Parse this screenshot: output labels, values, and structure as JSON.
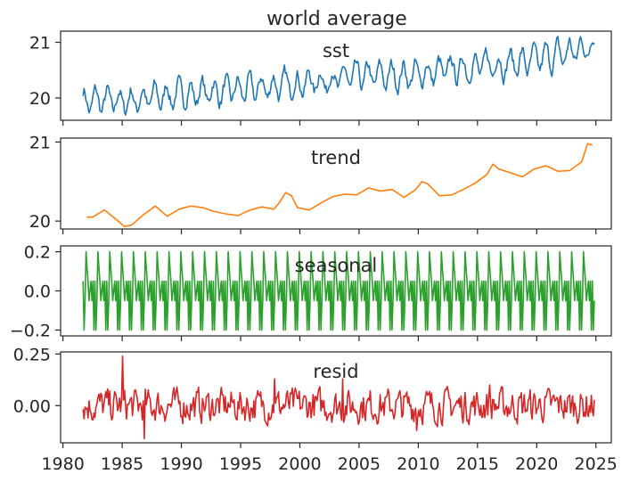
{
  "title": "world average",
  "colors": {
    "sst": "#1f77b4",
    "trend": "#ff7f0e",
    "seasonal": "#2ca02c",
    "resid": "#d62728",
    "axes": "#262626"
  },
  "chart_data": [
    {
      "type": "line",
      "panel": "sst",
      "label": "sst",
      "color": "#1f77b4",
      "ylim": [
        19.6,
        21.2
      ],
      "yticks": [
        20,
        21
      ],
      "ytick_labels": [
        "20",
        "21"
      ],
      "x_range": [
        1981.7,
        2024.9
      ],
      "x_anchor": [
        1981.7,
        1985,
        1990,
        1995,
        2000,
        2005,
        2010,
        2015,
        2020,
        2024.9
      ],
      "y_anchor": [
        19.95,
        19.94,
        20.08,
        20.14,
        20.27,
        20.38,
        20.42,
        20.58,
        20.67,
        20.94
      ],
      "seasonal_amplitude": 0.2,
      "noise_amplitude": 0.1
    },
    {
      "type": "line",
      "panel": "trend",
      "label": "trend",
      "color": "#ff7f0e",
      "ylim": [
        19.9,
        21.05
      ],
      "yticks": [
        20,
        21
      ],
      "ytick_labels": [
        "20",
        "21"
      ],
      "x": [
        1982.0,
        1982.5,
        1983.5,
        1984.5,
        1985.2,
        1985.8,
        1986.8,
        1987.8,
        1988.8,
        1989.8,
        1990.8,
        1991.8,
        1992.8,
        1993.8,
        1994.8,
        1995.8,
        1996.8,
        1997.8,
        1998.3,
        1998.8,
        1999.3,
        1999.8,
        2000.8,
        2001.8,
        2002.8,
        2003.8,
        2004.8,
        2005.8,
        2006.8,
        2007.8,
        2008.8,
        2009.8,
        2010.3,
        2010.8,
        2011.8,
        2012.8,
        2013.8,
        2014.8,
        2015.8,
        2016.3,
        2016.8,
        2017.8,
        2018.8,
        2019.8,
        2020.8,
        2021.8,
        2022.8,
        2023.8,
        2024.3,
        2024.7
      ],
      "y": [
        20.05,
        20.05,
        20.14,
        20.02,
        19.93,
        19.95,
        20.08,
        20.19,
        20.06,
        20.15,
        20.19,
        20.17,
        20.12,
        20.09,
        20.07,
        20.14,
        20.18,
        20.15,
        20.24,
        20.36,
        20.32,
        20.17,
        20.14,
        20.23,
        20.31,
        20.34,
        20.33,
        20.42,
        20.38,
        20.4,
        20.3,
        20.4,
        20.5,
        20.47,
        20.32,
        20.33,
        20.4,
        20.48,
        20.59,
        20.72,
        20.66,
        20.61,
        20.56,
        20.66,
        20.7,
        20.63,
        20.64,
        20.75,
        20.98,
        20.96
      ]
    },
    {
      "type": "line",
      "panel": "seasonal",
      "label": "seasonal",
      "color": "#2ca02c",
      "ylim": [
        -0.23,
        0.23
      ],
      "yticks": [
        0.2,
        0.0,
        -0.2
      ],
      "ytick_labels": [
        "0.2",
        "0.0",
        "−0.2"
      ],
      "x_range": [
        1981.7,
        2024.9
      ],
      "cycle": [
        0.05,
        -0.2,
        -0.05,
        0.2,
        0.12,
        0.05,
        -0.05,
        0.0,
        0.05,
        -0.05,
        0.05,
        -0.2
      ]
    },
    {
      "type": "line",
      "panel": "resid",
      "label": "resid",
      "color": "#d62728",
      "ylim": [
        -0.18,
        0.26
      ],
      "yticks": [
        0.25,
        0.0
      ],
      "ytick_labels": [
        "0.25",
        "0.00"
      ],
      "x_range": [
        1981.7,
        2024.9
      ],
      "noise_amplitude": 0.07,
      "peaks": [
        {
          "x": 1985.0,
          "y": 0.24
        },
        {
          "x": 1986.9,
          "y": -0.16
        },
        {
          "x": 1997.9,
          "y": 0.13
        },
        {
          "x": 2003.6,
          "y": 0.13
        },
        {
          "x": 2009.9,
          "y": -0.12
        },
        {
          "x": 2016.0,
          "y": 0.1
        }
      ]
    }
  ],
  "x_axis": {
    "range": [
      1979.8,
      2026.3
    ],
    "ticks": [
      1980,
      1985,
      1990,
      1995,
      2000,
      2005,
      2010,
      2015,
      2020,
      2025
    ],
    "tick_labels": [
      "1980",
      "1985",
      "1990",
      "1995",
      "2000",
      "2005",
      "2010",
      "2015",
      "2020",
      "2025"
    ]
  }
}
